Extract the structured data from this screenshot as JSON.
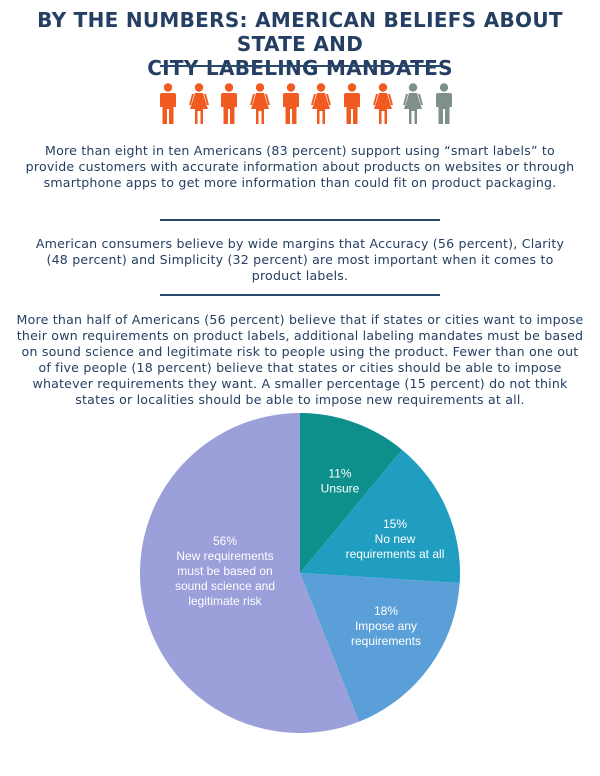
{
  "header": {
    "title_line1": "BY THE NUMBERS: AMERICAN BELIEFS ABOUT STATE AND",
    "title_line2": "CITY LABELING MANDATES"
  },
  "icons": {
    "people": [
      {
        "name": "person-man",
        "color": "#f15b22"
      },
      {
        "name": "person-woman",
        "color": "#f15b22"
      },
      {
        "name": "person-man",
        "color": "#f15b22"
      },
      {
        "name": "person-woman",
        "color": "#f15b22"
      },
      {
        "name": "person-man",
        "color": "#f15b22"
      },
      {
        "name": "person-woman",
        "color": "#f15b22"
      },
      {
        "name": "person-man",
        "color": "#f15b22"
      },
      {
        "name": "person-woman",
        "color": "#f15b22"
      },
      {
        "name": "person-woman",
        "color": "#7f8f8c"
      },
      {
        "name": "person-man",
        "color": "#7f8f8c"
      }
    ]
  },
  "paragraphs": {
    "p1": "More than eight in ten Americans (83 percent) support using “smart labels” to provide customers with accurate information about products on websites or through smartphone apps to get more information than could fit on product packaging.",
    "p2": "American consumers believe by wide margins that Accuracy (56 percent), Clarity (48 percent) and Simplicity (32 percent) are most important when it comes to product labels.",
    "p3": "More than half of Americans (56 percent) believe that if states or cities want to impose their own requirements on product labels, additional labeling mandates must be based on sound science and legitimate risk to people using the product. Fewer than one out of five people (18 percent) believe that states or cities should be able to impose whatever requirements they want. A smaller percentage (15 percent) do not think states or localities should be able to impose new requirements at all."
  },
  "chart_data": {
    "type": "pie",
    "title": "",
    "start": "12 o'clock, clockwise",
    "slices": [
      {
        "label": "Unsure",
        "value": 11,
        "percent_label": "11%",
        "color": "#0d8f8c",
        "label_lines": [
          "11%",
          "Unsure"
        ]
      },
      {
        "label": "No new requirements at all",
        "value": 15,
        "percent_label": "15%",
        "color": "#1f9ec2",
        "label_lines": [
          "15%",
          "No new",
          "requirements at all"
        ]
      },
      {
        "label": "Impose any requirements",
        "value": 18,
        "percent_label": "18%",
        "color": "#5a9fd8",
        "label_lines": [
          "18%",
          "Impose any",
          "requirements"
        ]
      },
      {
        "label": "New requirements must be based on sound science and legitimate risk",
        "value": 56,
        "percent_label": "56%",
        "color": "#9b9fda",
        "label_lines": [
          "56%",
          "New requirements",
          "must be based on",
          "sound science and",
          "legitimate risk"
        ]
      }
    ]
  }
}
